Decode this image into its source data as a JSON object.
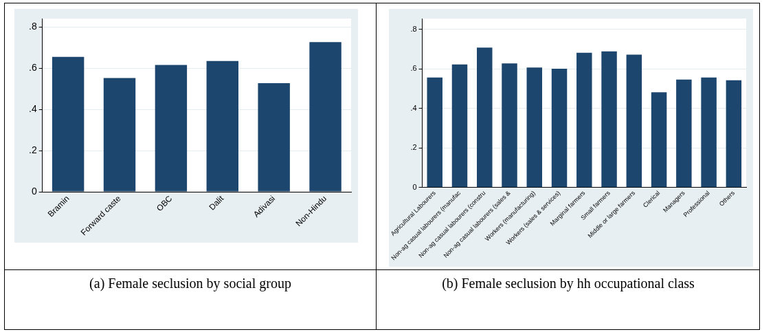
{
  "chart_data": [
    {
      "type": "bar",
      "title": "(a) Female seclusion by social group",
      "categories": [
        "Bramin",
        "Forward caste",
        "OBC",
        "Dalit",
        "Adivasi",
        "Non-Hindu"
      ],
      "values": [
        0.654,
        0.552,
        0.615,
        0.634,
        0.527,
        0.726
      ],
      "color": "#1c466e",
      "ylim": [
        0,
        0.84
      ],
      "yticks": [
        0,
        {
          "value": 0.2,
          "label": ".2"
        },
        {
          "value": 0.4,
          "label": ".4"
        },
        {
          "value": 0.6,
          "label": ".6"
        },
        {
          "value": 0.8,
          "label": ".8"
        }
      ],
      "grid": "y",
      "legend": false
    },
    {
      "type": "bar",
      "title": "(b) Female seclusion by hh occupational class",
      "categories": [
        "Agricultural Labourers",
        "Non-ag casual labourers (manufac",
        "Non-ag casual labourers (constru",
        "Non-ag casual labourers (sales &",
        "Workers (manufacturing)",
        "Workers (sales & services)",
        "Marginal farmers",
        "Small farmers",
        "Middle or large farmers",
        "Clerical",
        "Managers",
        "Professional",
        "Others"
      ],
      "values": [
        0.557,
        0.623,
        0.708,
        0.628,
        0.607,
        0.601,
        0.682,
        0.689,
        0.672,
        0.482,
        0.546,
        0.557,
        0.543
      ],
      "color": "#1c466e",
      "ylim": [
        0,
        0.855
      ],
      "yticks": [
        0,
        {
          "value": 0.2,
          "label": ".2"
        },
        {
          "value": 0.4,
          "label": ".4"
        },
        {
          "value": 0.6,
          "label": ".6"
        },
        {
          "value": 0.8,
          "label": ".8"
        }
      ],
      "grid": "y",
      "legend": false
    }
  ]
}
